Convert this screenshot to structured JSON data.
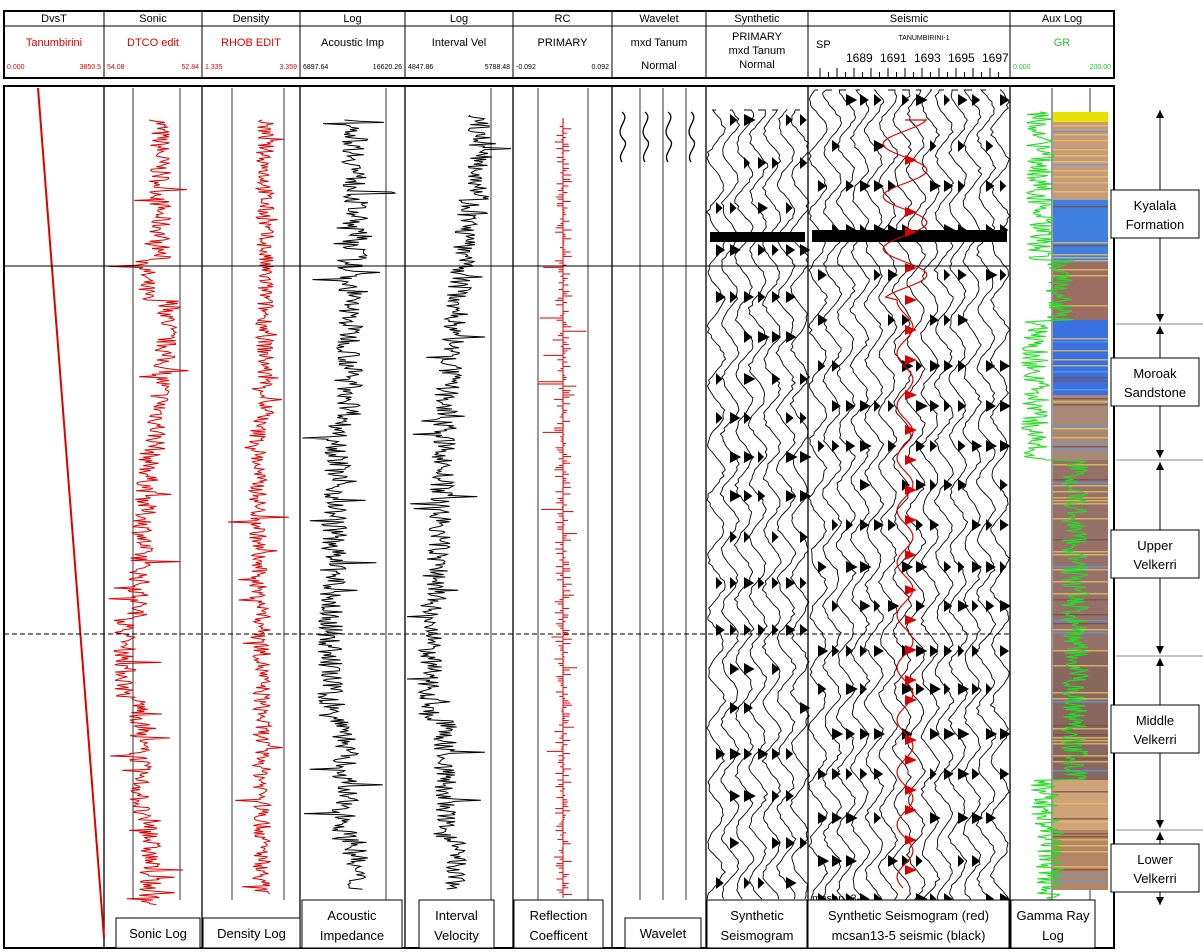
{
  "header": {
    "tracks": [
      {
        "title": "DvsT",
        "sub": "Tanumbirini",
        "sub_color": "#e00000",
        "scale_left": "0.000",
        "scale_right": "3850.5"
      },
      {
        "title": "Sonic",
        "sub": "DTCO edit",
        "sub_color": "#e00000",
        "scale_left": "54.08",
        "scale_right": "52.84"
      },
      {
        "title": "Density",
        "sub": "RHOB EDIT",
        "sub_color": "#e00000",
        "scale_left": "1.335",
        "scale_right": "3.359"
      },
      {
        "title": "Log",
        "sub": "Acoustic Imp",
        "sub_color": "#000000",
        "scale_left": "6897.64",
        "scale_right": "16620.26"
      },
      {
        "title": "Log",
        "sub": "Interval Vel",
        "sub_color": "#000000",
        "scale_left": "4847.86",
        "scale_right": "5788.48"
      },
      {
        "title": "RC",
        "sub": "PRIMARY",
        "sub_color": "#000000",
        "scale_left": "-0.092",
        "scale_right": "0.092"
      },
      {
        "title": "Wavelet",
        "sub": "mxd Tanum",
        "sub_color": "#000000",
        "sub2": "Normal"
      },
      {
        "title": "Synthetic",
        "sub": "PRIMARY",
        "sub_color": "#000000",
        "sub2": "mxd Tanum",
        "sub3": "Normal"
      },
      {
        "title": "Seismic",
        "sub": "TANUMBIRINI-1",
        "sub_color": "#000000",
        "sp_label": "SP",
        "sp_values": [
          "1689",
          "1691",
          "1693",
          "1695",
          "1697"
        ]
      },
      {
        "title": "Aux Log",
        "sub": "GR",
        "sub_color": "#22cc22",
        "scale_left": "0.000",
        "scale_right": "200.00"
      }
    ]
  },
  "captions": [
    {
      "line1": "Sonic Log",
      "line2": ""
    },
    {
      "line1": "Density Log",
      "line2": ""
    },
    {
      "line1": "Acoustic",
      "line2": "Impedance"
    },
    {
      "line1": "Interval",
      "line2": "Velocity"
    },
    {
      "line1": "Reflection",
      "line2": "Coefficent"
    },
    {
      "line1": "Wavelet",
      "line2": ""
    },
    {
      "line1": "Synthetic",
      "line2": "Seismogram"
    },
    {
      "line1": "Synthetic Seismogram (red)",
      "line2": "mcsan13-5 seismic  (black)"
    },
    {
      "line1": "Gamma Ray",
      "line2": "Log"
    }
  ],
  "formations": [
    {
      "line1": "Kyalala",
      "line2": "Formation"
    },
    {
      "line1": "Moroak",
      "line2": "Sandstone"
    },
    {
      "line1": "Upper",
      "line2": "Velkerri"
    },
    {
      "line1": "Middle",
      "line2": "Velkerri"
    },
    {
      "line1": "Lower",
      "line2": "Velkerri"
    }
  ],
  "seismic_line_label": "mcsan13-",
  "colors": {
    "sonic": "#e00000",
    "density": "#e00000",
    "impedance": "#000000",
    "velocity": "#000000",
    "rc": "#e00000",
    "gr": "#22dd22",
    "synthetic_red": "#dd0000"
  }
}
